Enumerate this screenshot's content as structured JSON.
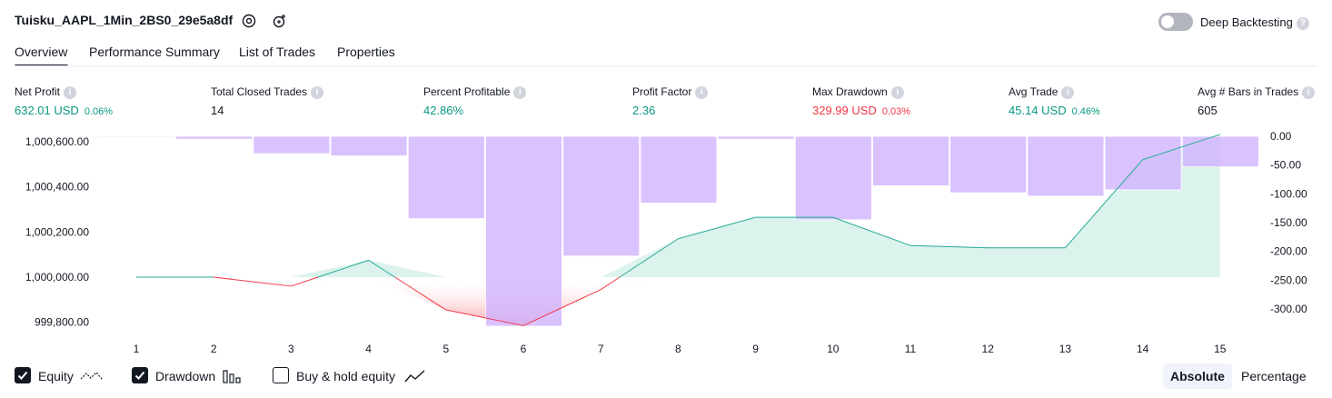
{
  "header": {
    "strategy_name": "Tuisku_AAPL_1Min_2BS0_29e5a8df",
    "settings_icon": "gear-icon",
    "snapshot_icon": "camera-plus-icon",
    "deep_backtesting_label": "Deep Backtesting",
    "deep_backtesting_enabled": false
  },
  "tabs": [
    {
      "label": "Overview",
      "active": true
    },
    {
      "label": "Performance Summary",
      "active": false
    },
    {
      "label": "List of Trades",
      "active": false
    },
    {
      "label": "Properties",
      "active": false
    }
  ],
  "metrics": [
    {
      "label": "Net Profit",
      "value": "632.01 USD",
      "pct": "0.06%",
      "tone": "pos"
    },
    {
      "label": "Total Closed Trades",
      "value": "14",
      "pct": "",
      "tone": "neu"
    },
    {
      "label": "Percent Profitable",
      "value": "42.86%",
      "pct": "",
      "tone": "pos"
    },
    {
      "label": "Profit Factor",
      "value": "2.36",
      "pct": "",
      "tone": "pos"
    },
    {
      "label": "Max Drawdown",
      "value": "329.99 USD",
      "pct": "0.03%",
      "tone": "neg"
    },
    {
      "label": "Avg Trade",
      "value": "45.14 USD",
      "pct": "0.46%",
      "tone": "pos"
    },
    {
      "label": "Avg # Bars in Trades",
      "value": "605",
      "pct": "",
      "tone": "neu"
    }
  ],
  "chart_data": {
    "type": "line",
    "x": [
      1,
      2,
      3,
      4,
      5,
      6,
      7,
      8,
      9,
      10,
      11,
      12,
      13,
      14,
      15
    ],
    "equity_baseline": 1000000,
    "series": [
      {
        "name": "Equity",
        "values": [
          1000000,
          1000000,
          999960,
          1000075,
          999855,
          999785,
          999945,
          1000170,
          1000265,
          1000265,
          1000140,
          1000130,
          1000130,
          1000520,
          1000632
        ]
      },
      {
        "name": "Drawdown",
        "values": [
          -1,
          -5,
          -30,
          -34,
          -143,
          -330,
          -208,
          -116,
          -5,
          -145,
          -86,
          -98,
          -104,
          -93,
          -53
        ]
      }
    ],
    "left_axis": {
      "ticks": [
        "1,000,600.00",
        "1,000,400.00",
        "1,000,200.00",
        "1,000,000.00",
        "999,800.00"
      ],
      "tick_values": [
        1000600,
        1000400,
        1000200,
        1000000,
        999800
      ]
    },
    "right_axis": {
      "ticks": [
        "0.00",
        "-50.00",
        "-100.00",
        "-150.00",
        "-200.00",
        "-250.00",
        "-300.00"
      ],
      "tick_values": [
        0,
        -50,
        -100,
        -150,
        -200,
        -250,
        -300
      ]
    },
    "colors": {
      "equity_up": "#22ab94",
      "equity_down": "#f23645",
      "drawdown": "#d1b3ff",
      "fill_up": "#d6f0ea",
      "fill_down": "#f9c5cc"
    }
  },
  "legend": [
    {
      "label": "Equity",
      "checked": true,
      "icon": "equity-line-icon"
    },
    {
      "label": "Drawdown",
      "checked": true,
      "icon": "drawdown-bars-icon"
    },
    {
      "label": "Buy & hold equity",
      "checked": false,
      "icon": "buy-hold-line-icon"
    }
  ],
  "mode_toggle": {
    "absolute": "Absolute",
    "percentage": "Percentage",
    "selected": "Absolute"
  }
}
